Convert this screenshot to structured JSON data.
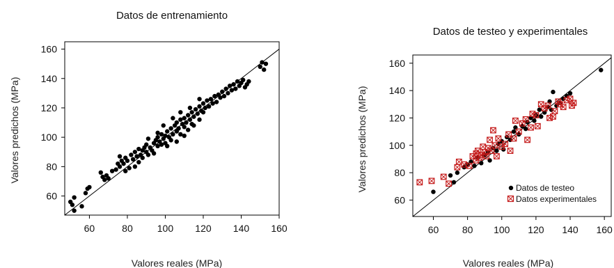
{
  "chart_data": [
    {
      "type": "scatter",
      "title": "Datos de entrenamiento",
      "xlabel": "Valores reales (MPa)",
      "ylabel": "Valores predichos (MPa)",
      "xlim": [
        47,
        160
      ],
      "ylim": [
        47,
        165
      ],
      "xticks": [
        60,
        80,
        100,
        120,
        140,
        160
      ],
      "yticks": [
        60,
        80,
        100,
        120,
        140,
        160
      ],
      "reference_line": "y = x",
      "series": [
        {
          "color": "#000000",
          "marker": "filled-circle",
          "points": [
            [
              50,
              56
            ],
            [
              51,
              54
            ],
            [
              52,
              59
            ],
            [
              52,
              50
            ],
            [
              56,
              53
            ],
            [
              58,
              62
            ],
            [
              59,
              65
            ],
            [
              60,
              66
            ],
            [
              66,
              76
            ],
            [
              67,
              73
            ],
            [
              68,
              71
            ],
            [
              69,
              74
            ],
            [
              70,
              72
            ],
            [
              72,
              77
            ],
            [
              74,
              78
            ],
            [
              75,
              82
            ],
            [
              76,
              80
            ],
            [
              76,
              87
            ],
            [
              77,
              84
            ],
            [
              78,
              82
            ],
            [
              79,
              86
            ],
            [
              80,
              84
            ],
            [
              81,
              79
            ],
            [
              82,
              88
            ],
            [
              83,
              85
            ],
            [
              84,
              90
            ],
            [
              85,
              87
            ],
            [
              86,
              92
            ],
            [
              86,
              83
            ],
            [
              87,
              88
            ],
            [
              88,
              91
            ],
            [
              88,
              86
            ],
            [
              89,
              93
            ],
            [
              90,
              90
            ],
            [
              90,
              95
            ],
            [
              91,
              88
            ],
            [
              92,
              93
            ],
            [
              93,
              91
            ],
            [
              94,
              96
            ],
            [
              94,
              89
            ],
            [
              95,
              98
            ],
            [
              96,
              94
            ],
            [
              96,
              100
            ],
            [
              97,
              97
            ],
            [
              98,
              95
            ],
            [
              98,
              102
            ],
            [
              99,
              99
            ],
            [
              100,
              101
            ],
            [
              100,
              96
            ],
            [
              101,
              104
            ],
            [
              102,
              100
            ],
            [
              103,
              106
            ],
            [
              103,
              98
            ],
            [
              104,
              102
            ],
            [
              105,
              108
            ],
            [
              106,
              104
            ],
            [
              106,
              110
            ],
            [
              107,
              106
            ],
            [
              108,
              112
            ],
            [
              108,
              102
            ],
            [
              109,
              109
            ],
            [
              110,
              107
            ],
            [
              110,
              113
            ],
            [
              111,
              110
            ],
            [
              112,
              115
            ],
            [
              112,
              105
            ],
            [
              113,
              112
            ],
            [
              114,
              117
            ],
            [
              114,
              109
            ],
            [
              115,
              114
            ],
            [
              116,
              119
            ],
            [
              117,
              116
            ],
            [
              118,
              121
            ],
            [
              118,
              112
            ],
            [
              119,
              118
            ],
            [
              120,
              123
            ],
            [
              120,
              117
            ],
            [
              121,
              120
            ],
            [
              122,
              125
            ],
            [
              123,
              121
            ],
            [
              124,
              126
            ],
            [
              125,
              123
            ],
            [
              126,
              128
            ],
            [
              127,
              124
            ],
            [
              128,
              129
            ],
            [
              129,
              127
            ],
            [
              130,
              131
            ],
            [
              131,
              128
            ],
            [
              132,
              133
            ],
            [
              133,
              130
            ],
            [
              134,
              135
            ],
            [
              135,
              132
            ],
            [
              136,
              136
            ],
            [
              137,
              133
            ],
            [
              138,
              138
            ],
            [
              139,
              135
            ],
            [
              140,
              137
            ],
            [
              141,
              139
            ],
            [
              142,
              134
            ],
            [
              143,
              136
            ],
            [
              144,
              138
            ],
            [
              150,
              148
            ],
            [
              151,
              151
            ],
            [
              152,
              146
            ],
            [
              153,
              150
            ],
            [
              91,
              99
            ],
            [
              96,
              103
            ],
            [
              99,
              108
            ],
            [
              104,
              113
            ],
            [
              101,
              94
            ],
            [
              110,
              101
            ],
            [
              115,
              108
            ],
            [
              106,
              97
            ],
            [
              84,
              80
            ],
            [
              79,
              77
            ],
            [
              118,
              126
            ],
            [
              108,
              117
            ],
            [
              113,
              120
            ]
          ]
        }
      ]
    },
    {
      "type": "scatter",
      "title": "Datos de testeo y experimentales",
      "xlabel": "Valores reales (MPa)",
      "ylabel": "Valores predichos (MPa)",
      "xlim": [
        48,
        164
      ],
      "ylim": [
        48,
        166
      ],
      "xticks": [
        60,
        80,
        100,
        120,
        140,
        160
      ],
      "yticks": [
        60,
        80,
        100,
        120,
        140,
        160
      ],
      "reference_line": "y = x",
      "legend_position": "bottom-right",
      "series": [
        {
          "name": "Datos de testeo",
          "color": "#000000",
          "marker": "filled-circle",
          "points": [
            [
              60,
              66
            ],
            [
              70,
              78
            ],
            [
              72,
              73
            ],
            [
              74,
              80
            ],
            [
              78,
              84
            ],
            [
              80,
              86
            ],
            [
              82,
              88
            ],
            [
              84,
              85
            ],
            [
              86,
              91
            ],
            [
              88,
              87
            ],
            [
              90,
              93
            ],
            [
              92,
              95
            ],
            [
              93,
              89
            ],
            [
              95,
              98
            ],
            [
              97,
              96
            ],
            [
              98,
              101
            ],
            [
              100,
              103
            ],
            [
              101,
              97
            ],
            [
              103,
              106
            ],
            [
              105,
              104
            ],
            [
              107,
              110
            ],
            [
              108,
              113
            ],
            [
              110,
              108
            ],
            [
              112,
              114
            ],
            [
              114,
              112
            ],
            [
              115,
              117
            ],
            [
              117,
              120
            ],
            [
              119,
              118
            ],
            [
              120,
              122
            ],
            [
              122,
              126
            ],
            [
              123,
              121
            ],
            [
              125,
              124
            ],
            [
              127,
              128
            ],
            [
              128,
              132
            ],
            [
              129,
              126
            ],
            [
              130,
              139
            ],
            [
              132,
              129
            ],
            [
              134,
              131
            ],
            [
              136,
              134
            ],
            [
              138,
              136
            ],
            [
              140,
              138
            ],
            [
              158,
              155
            ]
          ]
        },
        {
          "name": "Datos experimentales",
          "color": "#c41a1a",
          "marker": "crossed-square",
          "points": [
            [
              52,
              73
            ],
            [
              59,
              74
            ],
            [
              66,
              77
            ],
            [
              69,
              72
            ],
            [
              74,
              84
            ],
            [
              75,
              88
            ],
            [
              78,
              86
            ],
            [
              81,
              85
            ],
            [
              83,
              92
            ],
            [
              85,
              94
            ],
            [
              85,
              89
            ],
            [
              86,
              96
            ],
            [
              87,
              91
            ],
            [
              88,
              93
            ],
            [
              89,
              99
            ],
            [
              90,
              95
            ],
            [
              91,
              92
            ],
            [
              92,
              98
            ],
            [
              93,
              104
            ],
            [
              94,
              96
            ],
            [
              95,
              111
            ],
            [
              96,
              100
            ],
            [
              97,
              92
            ],
            [
              98,
              105
            ],
            [
              100,
              99
            ],
            [
              102,
              101
            ],
            [
              104,
              108
            ],
            [
              105,
              96
            ],
            [
              107,
              105
            ],
            [
              108,
              118
            ],
            [
              110,
              110
            ],
            [
              112,
              116
            ],
            [
              114,
              119
            ],
            [
              115,
              104
            ],
            [
              117,
              113
            ],
            [
              118,
              123
            ],
            [
              120,
              122
            ],
            [
              121,
              114
            ],
            [
              123,
              130
            ],
            [
              125,
              127
            ],
            [
              127,
              129
            ],
            [
              128,
              120
            ],
            [
              130,
              121
            ],
            [
              131,
              125
            ],
            [
              133,
              132
            ],
            [
              134,
              130
            ],
            [
              136,
              128
            ],
            [
              138,
              133
            ],
            [
              140,
              134
            ],
            [
              141,
              129
            ],
            [
              142,
              131
            ]
          ]
        }
      ]
    }
  ]
}
